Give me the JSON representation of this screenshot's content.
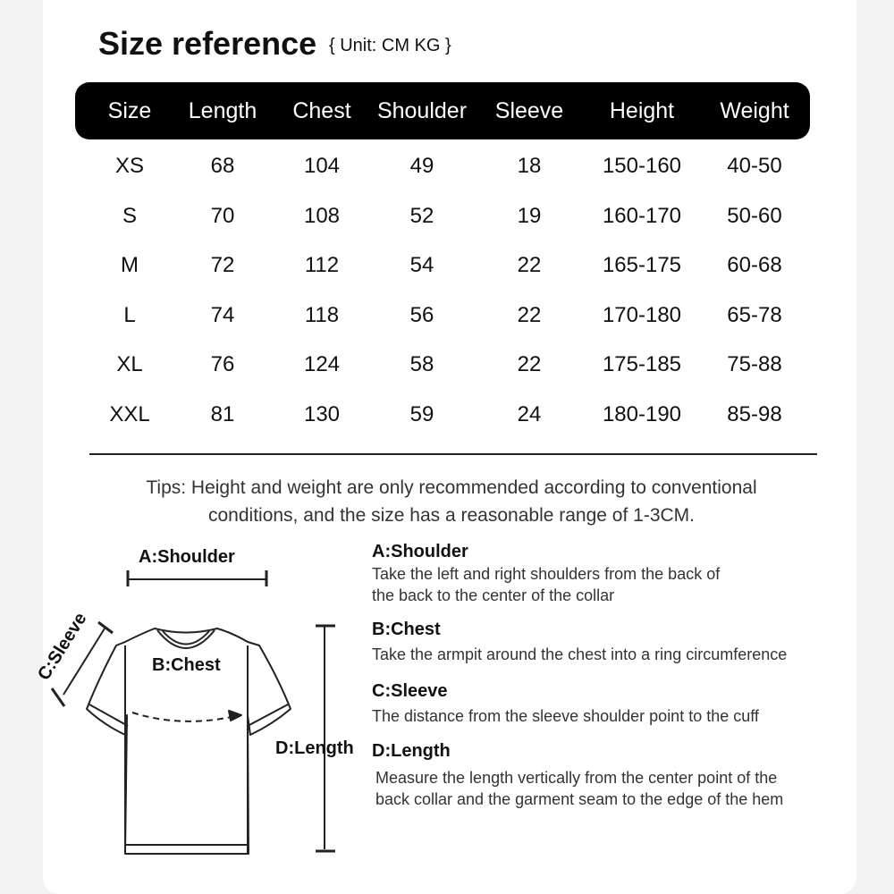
{
  "title": "Size reference",
  "unit": "{ Unit: CM KG }",
  "table": {
    "headers": [
      "Size",
      "Length",
      "Chest",
      "Shoulder",
      "Sleeve",
      "Height",
      "Weight"
    ],
    "rows": [
      [
        "XS",
        "68",
        "104",
        "49",
        "18",
        "150-160",
        "40-50"
      ],
      [
        "S",
        "70",
        "108",
        "52",
        "19",
        "160-170",
        "50-60"
      ],
      [
        "M",
        "72",
        "112",
        "54",
        "22",
        "165-175",
        "60-68"
      ],
      [
        "L",
        "74",
        "118",
        "56",
        "22",
        "170-180",
        "65-78"
      ],
      [
        "XL",
        "76",
        "124",
        "58",
        "22",
        "175-185",
        "75-88"
      ],
      [
        "XXL",
        "81",
        "130",
        "59",
        "24",
        "180-190",
        "85-98"
      ]
    ]
  },
  "tips": [
    "Tips: Height and weight are only recommended according to conventional",
    "conditions, and the size has a reasonable range of 1-3CM."
  ],
  "diagram": {
    "shoulder": "A:Shoulder",
    "chest": "B:Chest",
    "sleeve": "C:Sleeve",
    "length": "D:Length"
  },
  "measures": [
    {
      "label": "A:Shoulder",
      "desc": [
        "Take the left and right shoulders from the back of",
        "the back to the center of the collar"
      ]
    },
    {
      "label": "B:Chest",
      "desc": [
        "Take the armpit around the chest into a ring circumference"
      ]
    },
    {
      "label": "C:Sleeve",
      "desc": [
        "The distance from the sleeve shoulder point to the cuff"
      ]
    },
    {
      "label": "D:Length",
      "desc": [
        "Measure the length vertically from the center point of the",
        "back collar and the garment seam to the edge of the hem"
      ]
    }
  ]
}
